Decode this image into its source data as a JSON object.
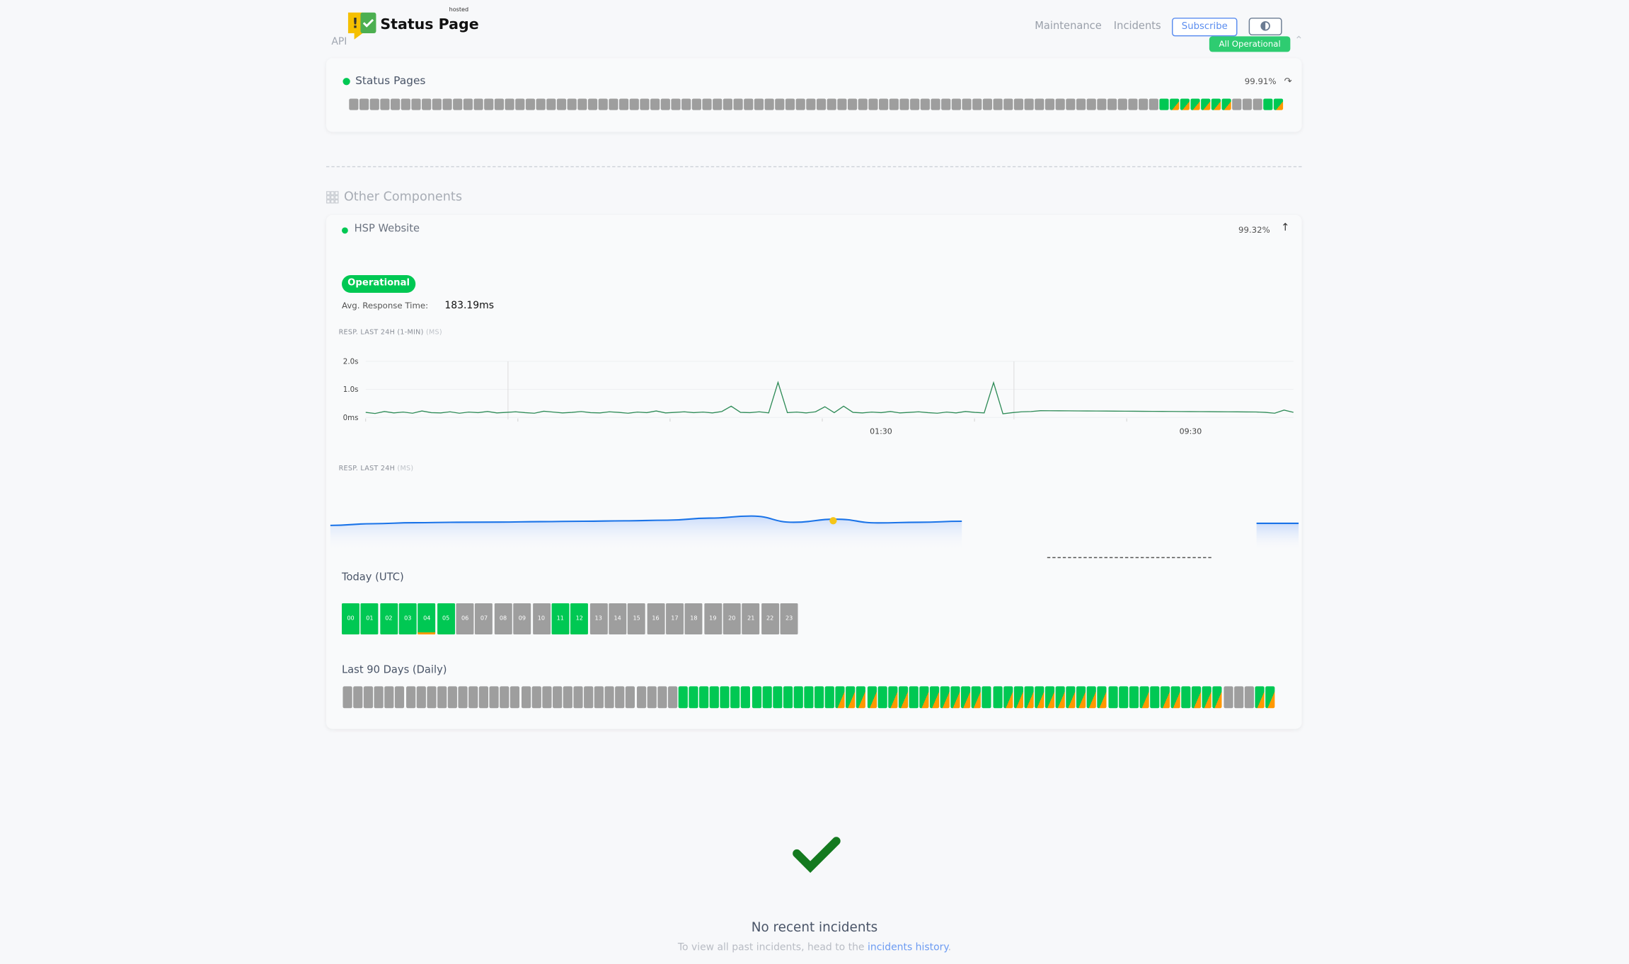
{
  "header": {
    "logo_title": "Status Page",
    "logo_sup": "hosted",
    "api_label": "API",
    "nav": [
      "Maintenance",
      "Incidents"
    ],
    "subscribe_label": "Subscribe",
    "theme_icon": "contrast-icon",
    "overall_status": "All Operational",
    "collapse_icon": "chevron-up-icon"
  },
  "status_pages": {
    "name": "Status Pages",
    "uptime": "99.91%",
    "status_color": "#00c853",
    "days": "xxxxxxxxxxxxxxxxxxxxxxxxxxxxxxxxxxxxxxxxxxxxxxxxxxxxxxxxxxxxxxxxxxxxxxxxxxxxxxgppppppxxxgp"
  },
  "other_components": {
    "title": "Other Components",
    "component": {
      "name": "HSP Website",
      "uptime": "99.32%",
      "status": "Operational",
      "avg_label": "Avg. Response Time:",
      "avg_value": "183.19ms",
      "chart1_label": "RESP. LAST 24H (1-MIN)",
      "chart1_unit": "(MS)",
      "chart2_label": "RESP. LAST 24H",
      "chart2_unit": "(MS)",
      "today_title": "Today (UTC)",
      "today_hours": [
        "00",
        "01",
        "02",
        "03",
        "04",
        "05",
        "06",
        "07",
        "08",
        "09",
        "10",
        "11",
        "12",
        "13",
        "14",
        "15",
        "16",
        "17",
        "18",
        "19",
        "20",
        "21",
        "22",
        "23"
      ],
      "today_status": "ggggggxxxxxggxxxxxxxxxxx",
      "today_partial_hour": "04",
      "days_title": "Last 90 Days (Daily)",
      "days": "xxxxxxxxxxxxxxxxxxxxxxxxxxxxxxxxgggggggggggggggppppgppgppppppggppppppppppgggpgppgpppxxxpp"
    }
  },
  "colors": {
    "operational": "#00c853",
    "degraded": "#ff9800",
    "no_data": "#9e9e9e",
    "accent": "#5b8def"
  },
  "chart_data": [
    {
      "type": "line",
      "title": "RESP. LAST 24H (1-MIN) (MS)",
      "yticks": [
        "0ms",
        "1.0s",
        "2.0s"
      ],
      "ylim": [
        0,
        2000
      ],
      "xticks": [
        "01:30",
        "09:30"
      ],
      "color": "#2e8b57",
      "values": [
        180,
        140,
        210,
        160,
        190,
        150,
        230,
        170,
        160,
        200,
        150,
        190,
        170,
        210,
        160,
        180,
        200,
        170,
        150,
        220,
        190,
        160,
        180,
        210,
        170,
        160,
        200,
        180,
        150,
        190,
        170,
        230,
        160,
        180,
        200,
        170,
        190,
        160,
        210,
        400,
        180,
        170,
        200,
        160,
        1250,
        170,
        190,
        160,
        200,
        380,
        170,
        400,
        180,
        160,
        190,
        170,
        210,
        160,
        180,
        200,
        170,
        150,
        190,
        160,
        210,
        180,
        160,
        1240,
        130,
        170,
        200,
        210,
        240,
        238,
        236,
        234,
        232,
        230,
        228,
        226,
        224,
        222,
        220,
        218,
        216,
        214,
        212,
        210,
        208,
        206,
        204,
        202,
        200,
        198,
        196,
        194,
        180,
        150,
        260,
        180
      ]
    },
    {
      "type": "area",
      "title": "RESP. LAST 24H (MS)",
      "color": "#1a73e8",
      "highlight_index": 12,
      "values": [
        170,
        178,
        183,
        185,
        186,
        188,
        190,
        192,
        195,
        205,
        215,
        185,
        200,
        182,
        185,
        190,
        null,
        null,
        null,
        null,
        null,
        null,
        180,
        180
      ]
    }
  ],
  "incidents": {
    "icon": "check-icon",
    "title": "No recent incidents",
    "text": "To view all past incidents, head to the",
    "link": "incidents history",
    "suffix": "."
  }
}
